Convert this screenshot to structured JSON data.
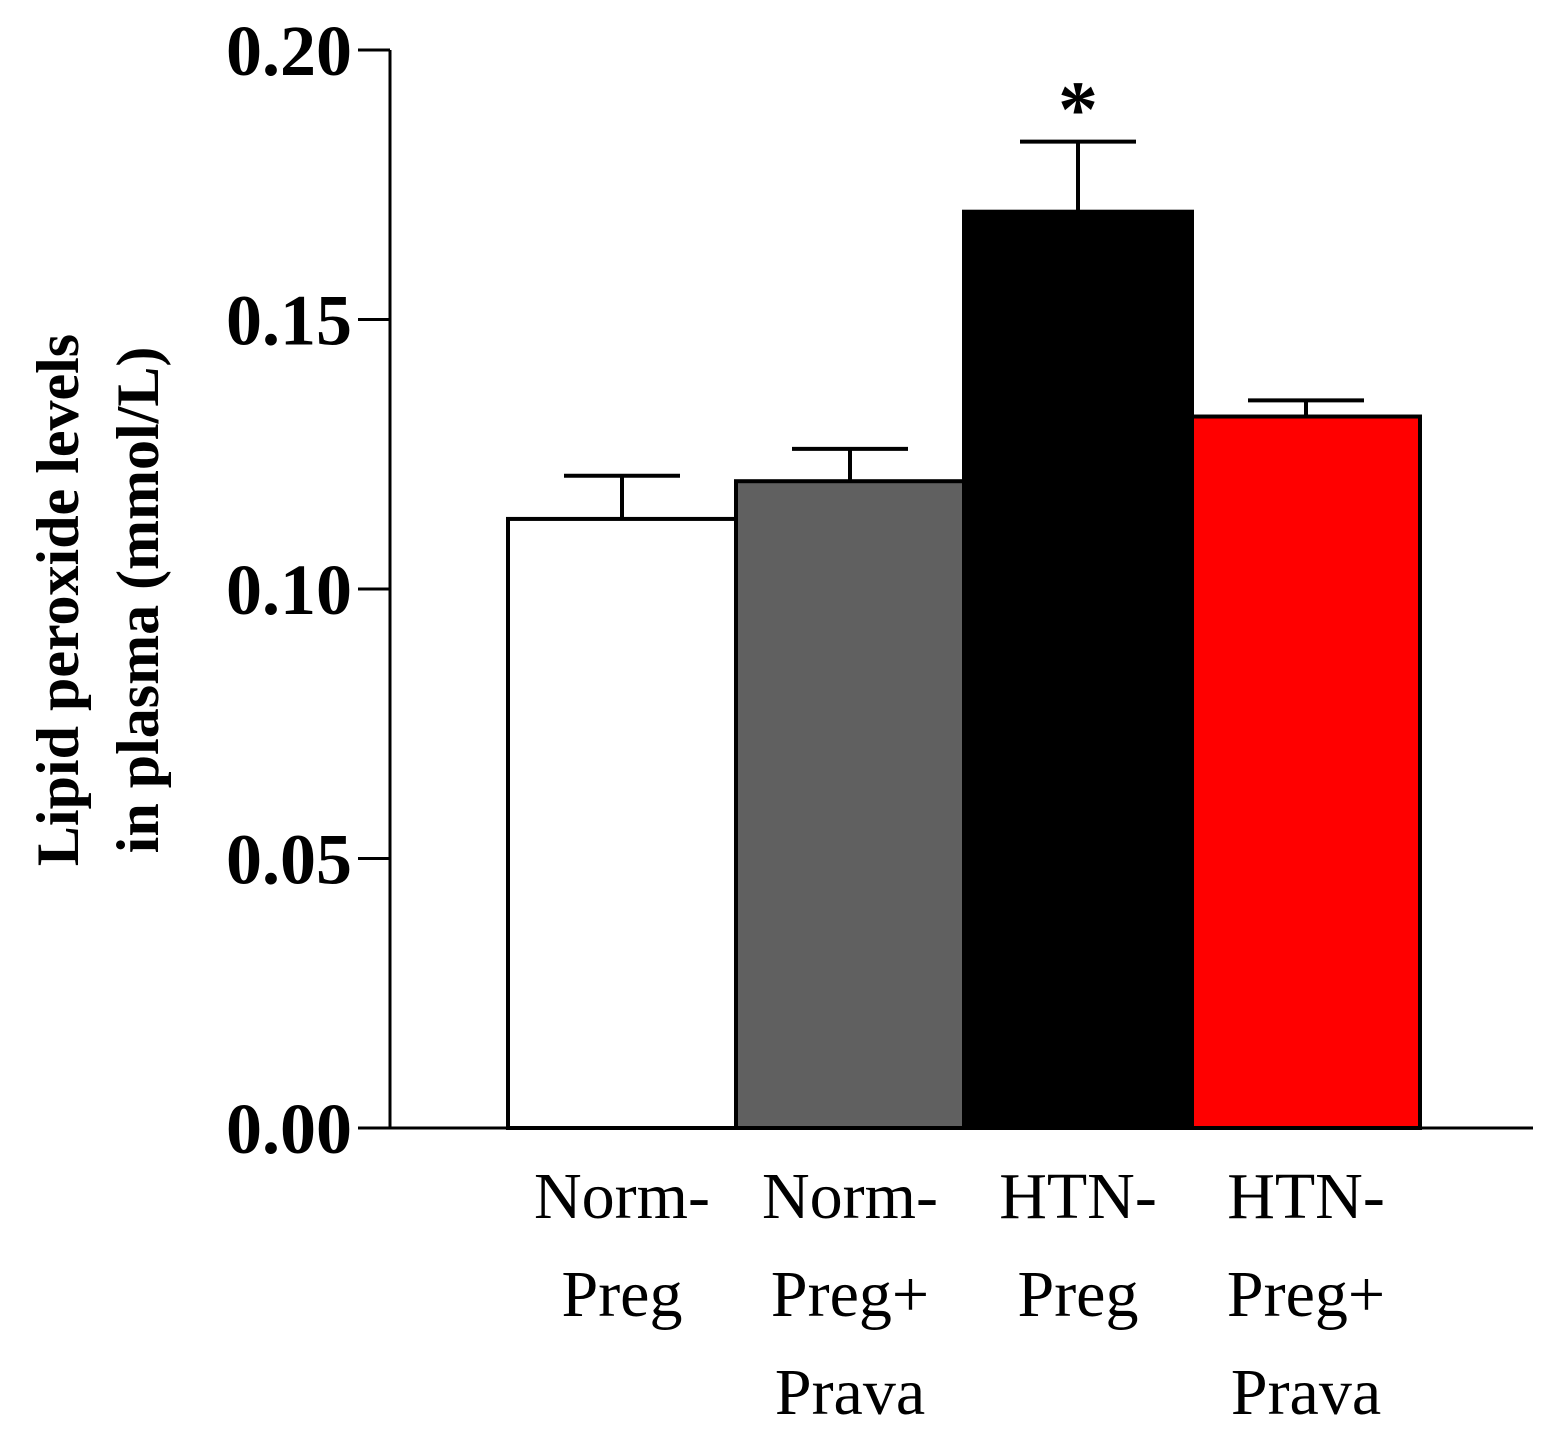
{
  "chart_data": {
    "type": "bar",
    "title": "",
    "ylabel_lines": [
      "Lipid peroxide levels",
      "in plasma (mmol/L)"
    ],
    "xlabel": "",
    "ylim": [
      0,
      0.2
    ],
    "yticks": [
      {
        "value": 0.0,
        "label": "0.00"
      },
      {
        "value": 0.05,
        "label": "0.05"
      },
      {
        "value": 0.1,
        "label": "0.10"
      },
      {
        "value": 0.15,
        "label": "0.15"
      },
      {
        "value": 0.2,
        "label": "0.20"
      }
    ],
    "categories": [
      {
        "lines": [
          "Norm-",
          "Preg"
        ]
      },
      {
        "lines": [
          "Norm-",
          "Preg+",
          "Prava"
        ]
      },
      {
        "lines": [
          "HTN-",
          "Preg"
        ]
      },
      {
        "lines": [
          "HTN-",
          "Preg+",
          "Prava"
        ]
      }
    ],
    "values": [
      0.113,
      0.12,
      0.17,
      0.132
    ],
    "errors": [
      0.008,
      0.006,
      0.013,
      0.003
    ],
    "colors": [
      "#ffffff",
      "#606060",
      "#000000",
      "#ff0000"
    ],
    "annotations": [
      {
        "category_index": 2,
        "text": "*"
      }
    ]
  }
}
